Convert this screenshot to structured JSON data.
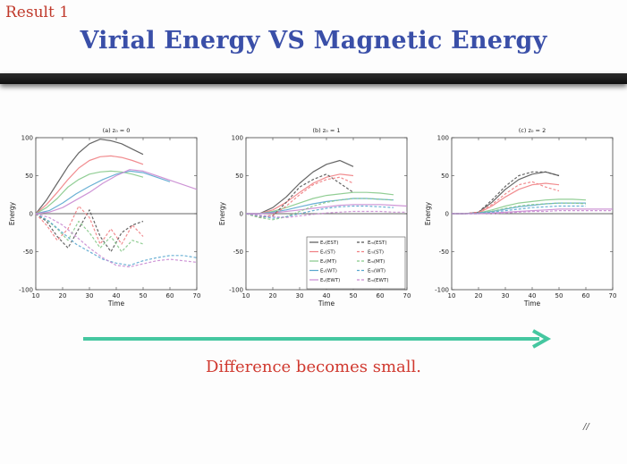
{
  "slide": {
    "result_label": "Result 1",
    "title": "Virial Energy VS Magnetic Energy",
    "caption": "Difference becomes small.",
    "page_number": "//"
  },
  "colors": {
    "title": "#3a4fa8",
    "caption": "#d0392f",
    "result_label": "#c0392b",
    "arrow": "#45c7a0",
    "EST": "#555555",
    "ST": "#f07f83",
    "MT": "#86c98a",
    "WT": "#5aa7cf",
    "EWT": "#c98ad1"
  },
  "chart_data": [
    {
      "type": "line",
      "title": "(a) z₀ = 0",
      "xlabel": "Time",
      "ylabel": "Energy",
      "xlim": [
        10,
        70
      ],
      "ylim": [
        -100,
        100
      ],
      "xticks": [
        "10",
        "20",
        "30",
        "40",
        "50",
        "60",
        "70"
      ],
      "yticks": [
        "-100",
        "-50",
        "0",
        "50",
        "100"
      ],
      "grid": false,
      "series": [
        {
          "name": "EST",
          "style": "solid",
          "color": "#555555",
          "x": [
            10,
            14,
            18,
            22,
            26,
            30,
            34,
            38,
            42,
            46,
            50
          ],
          "y": [
            0,
            18,
            40,
            62,
            80,
            92,
            98,
            96,
            92,
            85,
            78
          ]
        },
        {
          "name": "ST",
          "style": "solid",
          "color": "#f07f83",
          "x": [
            10,
            14,
            18,
            22,
            26,
            30,
            34,
            38,
            42,
            46,
            50
          ],
          "y": [
            0,
            12,
            28,
            45,
            60,
            70,
            75,
            76,
            74,
            70,
            65
          ]
        },
        {
          "name": "MT",
          "style": "solid",
          "color": "#86c98a",
          "x": [
            10,
            14,
            18,
            22,
            26,
            30,
            34,
            38,
            42,
            46,
            50
          ],
          "y": [
            0,
            8,
            20,
            35,
            45,
            52,
            55,
            56,
            55,
            52,
            48
          ]
        },
        {
          "name": "WT",
          "style": "solid",
          "color": "#5aa7cf",
          "x": [
            10,
            15,
            20,
            25,
            30,
            35,
            40,
            45,
            50,
            55,
            60
          ],
          "y": [
            0,
            4,
            14,
            26,
            36,
            45,
            52,
            56,
            54,
            48,
            42
          ]
        },
        {
          "name": "EWT",
          "style": "solid",
          "color": "#c98ad1",
          "x": [
            10,
            15,
            20,
            25,
            30,
            35,
            40,
            45,
            50,
            55,
            60,
            65,
            70
          ],
          "y": [
            0,
            2,
            8,
            18,
            28,
            40,
            50,
            58,
            56,
            50,
            44,
            38,
            32
          ]
        },
        {
          "name": "EST",
          "style": "dashed",
          "color": "#555555",
          "x": [
            10,
            14,
            18,
            22,
            26,
            30,
            34,
            38,
            42,
            46,
            50
          ],
          "y": [
            0,
            -10,
            -30,
            -45,
            -20,
            5,
            -30,
            -50,
            -25,
            -15,
            -10
          ]
        },
        {
          "name": "ST",
          "style": "dashed",
          "color": "#f07f83",
          "x": [
            10,
            14,
            18,
            22,
            26,
            30,
            34,
            38,
            42,
            46,
            50
          ],
          "y": [
            0,
            -15,
            -35,
            -20,
            10,
            -5,
            -40,
            -20,
            -40,
            -15,
            -30
          ]
        },
        {
          "name": "MT",
          "style": "dashed",
          "color": "#86c98a",
          "x": [
            10,
            14,
            18,
            22,
            26,
            30,
            34,
            38,
            42,
            46,
            50
          ],
          "y": [
            0,
            -8,
            -20,
            -35,
            -10,
            -25,
            -45,
            -30,
            -50,
            -35,
            -40
          ]
        },
        {
          "name": "WT",
          "style": "dashed",
          "color": "#5aa7cf",
          "x": [
            10,
            15,
            20,
            25,
            30,
            35,
            40,
            45,
            50,
            55,
            60,
            65,
            70
          ],
          "y": [
            0,
            -10,
            -25,
            -40,
            -50,
            -60,
            -65,
            -68,
            -62,
            -58,
            -55,
            -55,
            -58
          ]
        },
        {
          "name": "EWT",
          "style": "dashed",
          "color": "#c98ad1",
          "x": [
            10,
            15,
            20,
            25,
            30,
            35,
            40,
            45,
            50,
            55,
            60,
            65,
            70
          ],
          "y": [
            0,
            -5,
            -15,
            -30,
            -45,
            -58,
            -68,
            -70,
            -66,
            -62,
            -60,
            -62,
            -64
          ]
        }
      ]
    },
    {
      "type": "line",
      "title": "(b) z₀ = 1",
      "xlabel": "Time",
      "ylabel": "Energy",
      "xlim": [
        10,
        70
      ],
      "ylim": [
        -100,
        100
      ],
      "xticks": [
        "10",
        "20",
        "30",
        "40",
        "50",
        "60",
        "70"
      ],
      "yticks": [
        "-100",
        "-50",
        "0",
        "50",
        "100"
      ],
      "grid": false,
      "legend": {
        "position": "lower-right",
        "solid_labels": [
          "Eᵥ(EST)",
          "Eᵥ(ST)",
          "Eᵥ(MT)",
          "Eᵥ(WT)",
          "Eᵥ(EWT)"
        ],
        "dashed_labels": [
          "Eₘ(EST)",
          "Eₘ(ST)",
          "Eₘ(MT)",
          "Eₘ(WT)",
          "Eₘ(EWT)"
        ]
      },
      "series": [
        {
          "name": "Eᵥ(EST)",
          "style": "solid",
          "color": "#555555",
          "x": [
            10,
            15,
            20,
            25,
            30,
            35,
            40,
            45,
            50
          ],
          "y": [
            0,
            0,
            8,
            22,
            40,
            55,
            65,
            70,
            62
          ]
        },
        {
          "name": "Eᵥ(ST)",
          "style": "solid",
          "color": "#f07f83",
          "x": [
            10,
            15,
            20,
            25,
            30,
            35,
            40,
            45,
            50
          ],
          "y": [
            0,
            0,
            5,
            15,
            28,
            40,
            48,
            52,
            50
          ]
        },
        {
          "name": "Eᵥ(MT)",
          "style": "solid",
          "color": "#86c98a",
          "x": [
            10,
            15,
            20,
            25,
            30,
            35,
            40,
            45,
            50,
            55,
            60,
            65
          ],
          "y": [
            0,
            0,
            3,
            8,
            14,
            20,
            24,
            26,
            28,
            28,
            27,
            25
          ]
        },
        {
          "name": "Eᵥ(WT)",
          "style": "solid",
          "color": "#5aa7cf",
          "x": [
            10,
            15,
            20,
            25,
            30,
            35,
            40,
            45,
            50,
            55,
            60,
            65
          ],
          "y": [
            0,
            0,
            2,
            5,
            9,
            13,
            16,
            18,
            20,
            20,
            19,
            18
          ]
        },
        {
          "name": "Eᵥ(EWT)",
          "style": "solid",
          "color": "#c98ad1",
          "x": [
            10,
            15,
            20,
            25,
            30,
            35,
            40,
            45,
            50,
            55,
            60,
            65,
            70
          ],
          "y": [
            0,
            0,
            1,
            3,
            5,
            7,
            9,
            11,
            12,
            12,
            12,
            11,
            10
          ]
        },
        {
          "name": "Eₘ(EST)",
          "style": "dashed",
          "color": "#555555",
          "x": [
            10,
            15,
            20,
            25,
            30,
            35,
            40,
            45,
            50
          ],
          "y": [
            0,
            -5,
            -3,
            15,
            35,
            45,
            52,
            40,
            28
          ]
        },
        {
          "name": "Eₘ(ST)",
          "style": "dashed",
          "color": "#f07f83",
          "x": [
            10,
            15,
            20,
            25,
            30,
            35,
            40,
            45,
            50
          ],
          "y": [
            0,
            -4,
            -2,
            10,
            25,
            38,
            45,
            48,
            40
          ]
        },
        {
          "name": "Eₘ(MT)",
          "style": "dashed",
          "color": "#86c98a",
          "x": [
            10,
            15,
            20,
            25,
            30,
            35,
            40,
            45,
            50,
            55,
            60,
            65
          ],
          "y": [
            0,
            -5,
            -8,
            -4,
            3,
            10,
            15,
            18,
            20,
            20,
            19,
            18
          ]
        },
        {
          "name": "Eₘ(WT)",
          "style": "dashed",
          "color": "#5aa7cf",
          "x": [
            10,
            15,
            20,
            25,
            30,
            35,
            40,
            45,
            50,
            55,
            60,
            65
          ],
          "y": [
            0,
            -3,
            -6,
            -4,
            0,
            4,
            7,
            9,
            10,
            10,
            9,
            8
          ]
        },
        {
          "name": "Eₘ(EWT)",
          "style": "dashed",
          "color": "#c98ad1",
          "x": [
            10,
            15,
            20,
            25,
            30,
            35,
            40,
            45,
            50,
            55,
            60,
            65,
            70
          ],
          "y": [
            0,
            -2,
            -4,
            -5,
            -3,
            -1,
            1,
            2,
            3,
            3,
            3,
            2,
            2
          ]
        }
      ]
    },
    {
      "type": "line",
      "title": "(c) z₀ = 2",
      "xlabel": "Time",
      "ylabel": "Energy",
      "xlim": [
        10,
        70
      ],
      "ylim": [
        -100,
        100
      ],
      "xticks": [
        "10",
        "20",
        "30",
        "40",
        "50",
        "60",
        "70"
      ],
      "yticks": [
        "-100",
        "-50",
        "0",
        "50",
        "100"
      ],
      "grid": false,
      "series": [
        {
          "name": "EST",
          "style": "solid",
          "color": "#555555",
          "x": [
            10,
            15,
            20,
            25,
            30,
            35,
            40,
            45,
            50
          ],
          "y": [
            0,
            0,
            2,
            15,
            32,
            45,
            52,
            55,
            50
          ]
        },
        {
          "name": "ST",
          "style": "solid",
          "color": "#f07f83",
          "x": [
            10,
            15,
            20,
            25,
            30,
            35,
            40,
            45,
            50
          ],
          "y": [
            0,
            0,
            1,
            10,
            22,
            32,
            38,
            40,
            38
          ]
        },
        {
          "name": "MT",
          "style": "solid",
          "color": "#86c98a",
          "x": [
            10,
            15,
            20,
            25,
            30,
            35,
            40,
            45,
            50,
            55,
            60
          ],
          "y": [
            0,
            0,
            1,
            5,
            10,
            14,
            16,
            18,
            19,
            19,
            18
          ]
        },
        {
          "name": "WT",
          "style": "solid",
          "color": "#5aa7cf",
          "x": [
            10,
            15,
            20,
            25,
            30,
            35,
            40,
            45,
            50,
            55,
            60
          ],
          "y": [
            0,
            0,
            1,
            3,
            6,
            9,
            11,
            13,
            14,
            14,
            14
          ]
        },
        {
          "name": "EWT",
          "style": "solid",
          "color": "#c98ad1",
          "x": [
            10,
            15,
            20,
            25,
            30,
            35,
            40,
            45,
            50,
            55,
            60,
            65,
            70
          ],
          "y": [
            0,
            0,
            0,
            1,
            2,
            3,
            4,
            5,
            6,
            6,
            6,
            6,
            6
          ]
        },
        {
          "name": "EST",
          "style": "dashed",
          "color": "#555555",
          "x": [
            10,
            15,
            20,
            25,
            30,
            35,
            40,
            45,
            50
          ],
          "y": [
            0,
            0,
            2,
            18,
            36,
            50,
            55,
            55,
            50
          ]
        },
        {
          "name": "ST",
          "style": "dashed",
          "color": "#f07f83",
          "x": [
            10,
            15,
            20,
            25,
            30,
            35,
            40,
            45,
            50
          ],
          "y": [
            0,
            0,
            2,
            12,
            26,
            38,
            42,
            35,
            30
          ]
        },
        {
          "name": "MT",
          "style": "dashed",
          "color": "#86c98a",
          "x": [
            10,
            15,
            20,
            25,
            30,
            35,
            40,
            45,
            50,
            55,
            60
          ],
          "y": [
            0,
            0,
            0,
            3,
            7,
            10,
            12,
            13,
            14,
            14,
            13
          ]
        },
        {
          "name": "WT",
          "style": "dashed",
          "color": "#5aa7cf",
          "x": [
            10,
            15,
            20,
            25,
            30,
            35,
            40,
            45,
            50,
            55,
            60
          ],
          "y": [
            0,
            0,
            0,
            2,
            4,
            6,
            8,
            9,
            10,
            10,
            10
          ]
        },
        {
          "name": "EWT",
          "style": "dashed",
          "color": "#c98ad1",
          "x": [
            10,
            15,
            20,
            25,
            30,
            35,
            40,
            45,
            50,
            55,
            60,
            65,
            70
          ],
          "y": [
            0,
            0,
            0,
            0,
            1,
            2,
            3,
            3,
            4,
            4,
            4,
            4,
            4
          ]
        }
      ]
    }
  ]
}
